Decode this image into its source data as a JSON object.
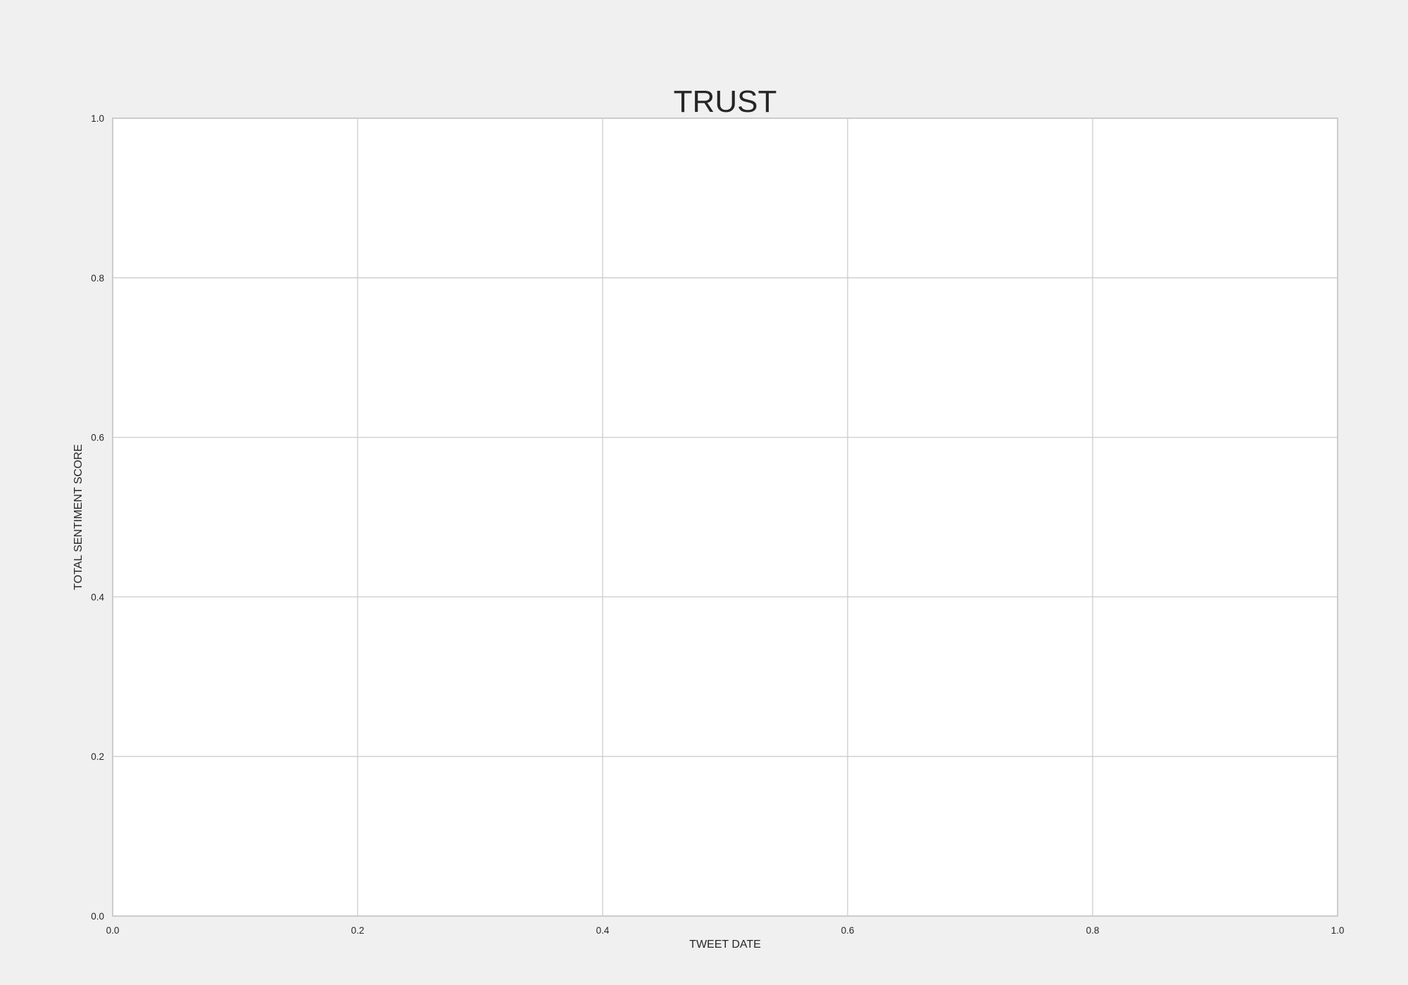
{
  "chart_data": {
    "type": "line",
    "title": "TRUST",
    "xlabel": "TWEET DATE",
    "ylabel": "TOTAL SENTIMENT SCORE",
    "xlim": [
      0.0,
      1.0
    ],
    "ylim": [
      0.0,
      1.0
    ],
    "x_ticks": [
      "0.0",
      "0.2",
      "0.4",
      "0.6",
      "0.8",
      "1.0"
    ],
    "y_ticks": [
      "0.0",
      "0.2",
      "0.4",
      "0.6",
      "0.8",
      "1.0"
    ],
    "series": [],
    "grid": true,
    "colors": {
      "figure_background": "#f0f0f0",
      "plot_background": "#ffffff",
      "grid": "#cccccc",
      "text": "#262626"
    }
  }
}
